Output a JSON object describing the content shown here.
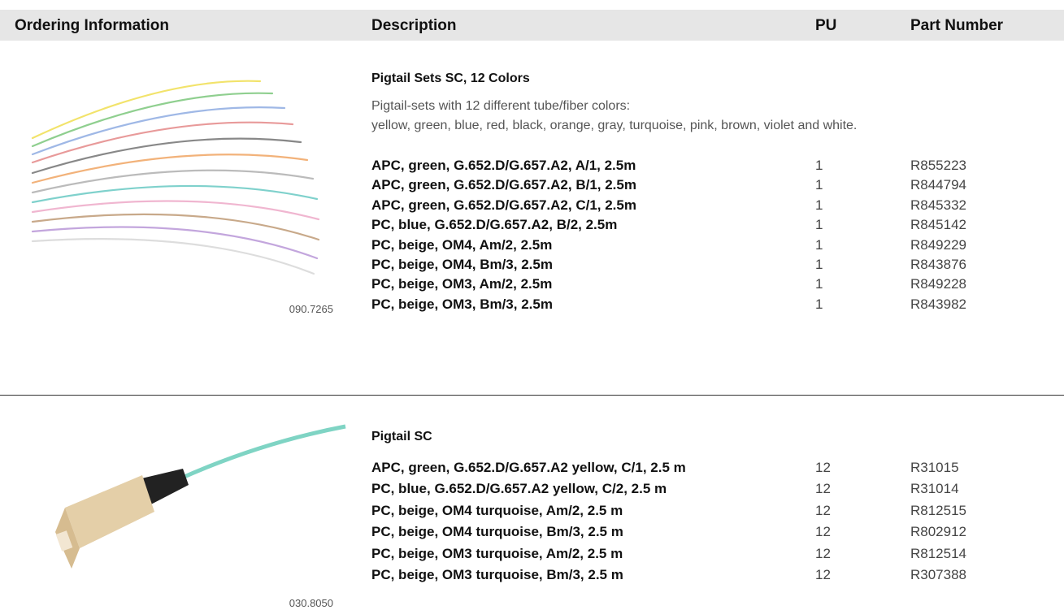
{
  "header": {
    "columns": [
      "Ordering Information",
      "Description",
      "PU",
      "Part Number"
    ]
  },
  "sections": [
    {
      "title": "Pigtail Sets SC, 12 Colors",
      "description": [
        "Pigtail-sets with 12 different tube/fiber colors:",
        "yellow, green, blue, red, black, orange, gray, turquoise, pink, brown, violet and white."
      ],
      "image_code": "090.7265",
      "rows": [
        {
          "description": "APC, green, G.652.D/G.657.A2, A/1, 2.5m",
          "pu": "1",
          "part_number": "R855223"
        },
        {
          "description": "APC, green, G.652.D/G.657.A2, B/1, 2.5m",
          "pu": "1",
          "part_number": "R844794"
        },
        {
          "description": "APC, green, G.652.D/G.657.A2, C/1, 2.5m",
          "pu": "1",
          "part_number": "R845332"
        },
        {
          "description": "PC, blue, G.652.D/G.657.A2, B/2, 2.5m",
          "pu": "1",
          "part_number": "R845142"
        },
        {
          "description": "PC, beige, OM4, Am/2, 2.5m",
          "pu": "1",
          "part_number": "R849229"
        },
        {
          "description": "PC, beige, OM4, Bm/3, 2.5m",
          "pu": "1",
          "part_number": "R843876"
        },
        {
          "description": "PC, beige, OM3, Am/2, 2.5m",
          "pu": "1",
          "part_number": "R849228"
        },
        {
          "description": "PC, beige, OM3, Bm/3, 2.5m",
          "pu": "1",
          "part_number": "R843982"
        }
      ]
    },
    {
      "title": "Pigtail SC",
      "description": [],
      "image_code": "030.8050",
      "rows": [
        {
          "description": "APC, green, G.652.D/G.657.A2 yellow, C/1, 2.5 m",
          "pu": "12",
          "part_number": "R31015"
        },
        {
          "description": "PC, blue, G.652.D/G.657.A2 yellow, C/2, 2.5 m",
          "pu": "12",
          "part_number": "R31014"
        },
        {
          "description": "PC, beige, OM4 turquoise, Am/2, 2.5 m",
          "pu": "12",
          "part_number": "R812515"
        },
        {
          "description": "PC, beige, OM4 turquoise, Bm/3, 2.5 m",
          "pu": "12",
          "part_number": "R802912"
        },
        {
          "description": "PC, beige, OM3 turquoise, Am/2, 2.5 m",
          "pu": "12",
          "part_number": "R812514"
        },
        {
          "description": "PC, beige, OM3 turquoise, Bm/3, 2.5 m",
          "pu": "12",
          "part_number": "R307388"
        }
      ]
    }
  ]
}
